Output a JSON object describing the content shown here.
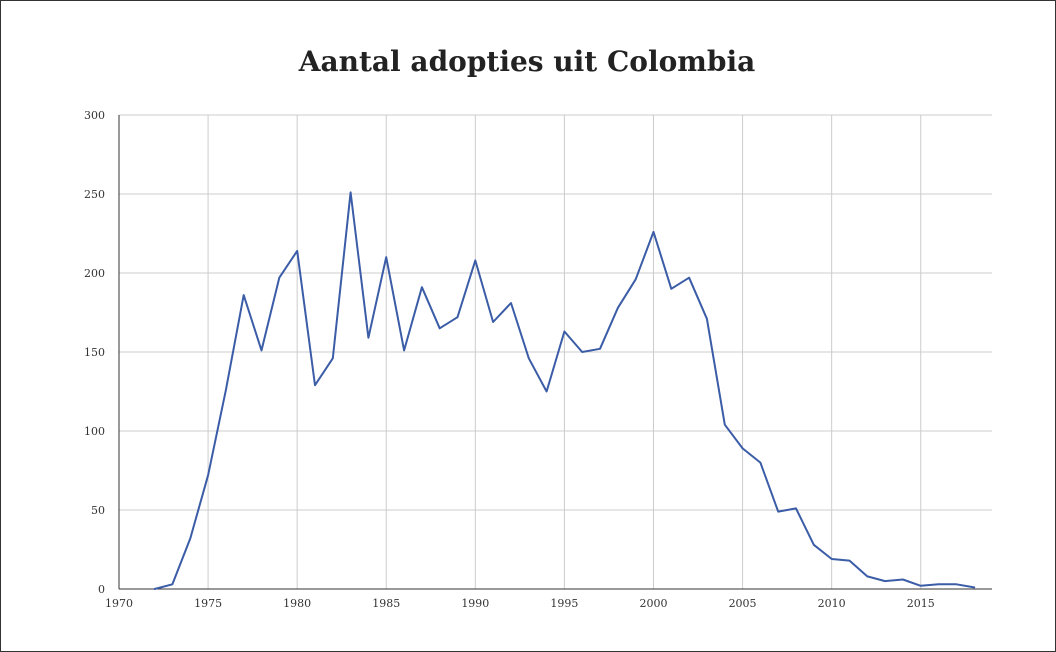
{
  "chart_data": {
    "type": "line",
    "title": "Aantal adopties uit Colombia",
    "xlabel": "",
    "ylabel": "",
    "xlim": [
      1970,
      2019
    ],
    "ylim": [
      0,
      300
    ],
    "x_ticks": [
      "1970",
      "1975",
      "1980",
      "1985",
      "1990",
      "1995",
      "2000",
      "2005",
      "2010",
      "2015"
    ],
    "y_ticks": [
      "0",
      "50",
      "100",
      "150",
      "200",
      "250",
      "300"
    ],
    "grid": true,
    "legend": "none",
    "line_color": "#3b5ca6",
    "series": [
      {
        "x": [
          1972,
          1973,
          1974,
          1975,
          1976,
          1977,
          1978,
          1979,
          1980,
          1981,
          1982,
          1983,
          1984,
          1985,
          1986,
          1987,
          1988,
          1989,
          1990,
          1991,
          1992,
          1993,
          1994,
          1995,
          1996,
          1997,
          1998,
          1999,
          2000,
          2001,
          2002,
          2003,
          2004,
          2005,
          2006,
          2007,
          2008,
          2009,
          2010,
          2011,
          2012,
          2013,
          2014,
          2015,
          2016,
          2017,
          2018
        ],
        "y": [
          0,
          3,
          32,
          72,
          126,
          186,
          151,
          197,
          214,
          129,
          146,
          251,
          159,
          210,
          151,
          191,
          165,
          172,
          208,
          169,
          181,
          146,
          125,
          163,
          150,
          152,
          178,
          196,
          226,
          190,
          197,
          171,
          104,
          89,
          80,
          49,
          51,
          28,
          19,
          18,
          8,
          5,
          6,
          2,
          3,
          3,
          1
        ]
      }
    ]
  }
}
